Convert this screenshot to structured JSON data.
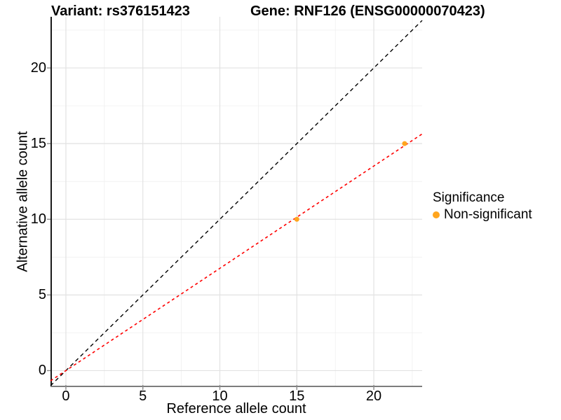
{
  "chart_data": {
    "type": "scatter",
    "title_left": "Variant: rs376151423",
    "title_right": "Gene: RNF126 (ENSG00000070423)",
    "xlabel": "Reference allele count",
    "ylabel": "Alternative allele count",
    "xlim": [
      -1.0,
      23.14
    ],
    "ylim": [
      -1.09,
      23.38
    ],
    "x_ticks": [
      0,
      5,
      10,
      15,
      20
    ],
    "y_ticks": [
      0,
      5,
      10,
      15,
      20
    ],
    "x_minor_ticks": [
      2.5,
      7.5,
      12.5,
      17.5,
      22.5
    ],
    "y_minor_ticks": [
      2.5,
      7.5,
      12.5,
      17.5,
      22.5
    ],
    "grid": "major+minor",
    "points": [
      {
        "x": 15,
        "y": 10,
        "series": "Non-significant"
      },
      {
        "x": 22,
        "y": 15,
        "series": "Non-significant"
      }
    ],
    "lines": [
      {
        "name": "identity-line",
        "style": "dashed",
        "color": "#000000",
        "dash": "5.5,4.5",
        "width": 1.4,
        "x1": -1.0,
        "y1": -1.0,
        "x2": 23.14,
        "y2": 23.14
      },
      {
        "name": "fit-line",
        "style": "dashed",
        "color": "#FF0000",
        "dash": "4,4",
        "width": 1.6,
        "slope": 0.6757,
        "intercept": 0,
        "x1": -1.0,
        "y1": -0.676,
        "x2": 23.14,
        "y2": 15.64
      }
    ],
    "legend": {
      "title": "Significance",
      "position": "right",
      "items": [
        {
          "label": "Non-significant",
          "color": "#FFA51E"
        }
      ]
    },
    "colors": {
      "point": "#FFA51E",
      "grid_major": "#E2E2E2",
      "grid_minor": "#EFEFEF",
      "axis_line_left": "#1A1A1A",
      "axis_line_bottom": "#7D7D7D",
      "tick": "#8A8A8A",
      "text": "#000000",
      "background": "#FFFFFF"
    }
  }
}
